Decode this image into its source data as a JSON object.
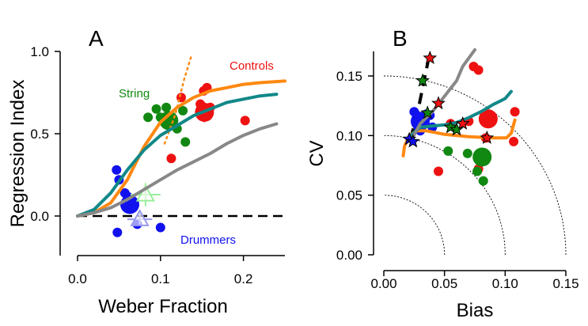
{
  "colors": {
    "controls": "#ee1111",
    "string": "#118811",
    "drummers": "#1111ee",
    "orange": "#ff8811",
    "teal": "#118888",
    "gray": "#888888",
    "light_green": "#99ee99",
    "light_blue": "#9999ee"
  },
  "chart_data": [
    {
      "type": "scatter",
      "panel_label": "A",
      "xlabel": "Weber Fraction",
      "ylabel": "Regression Index",
      "xlim": [
        0,
        0.25
      ],
      "ylim": [
        -0.2,
        1.0
      ],
      "xticks": [
        "0.0",
        "0.1",
        "0.2"
      ],
      "yticks": [
        "0.0",
        "0.5",
        "1.0"
      ],
      "annotations": [
        {
          "text": "Controls",
          "group": "controls",
          "x": 0.185,
          "y": 0.87
        },
        {
          "text": "String",
          "group": "string",
          "x": 0.061,
          "y": 0.72
        },
        {
          "text": "Drummers",
          "group": "drummers",
          "x": 0.148,
          "y": -0.14
        }
      ],
      "series": [
        {
          "group": "controls",
          "kind": "points",
          "points": [
            [
              0.113,
              0.35
            ],
            [
              0.125,
              0.72
            ],
            [
              0.148,
              0.68
            ],
            [
              0.152,
              0.76
            ],
            [
              0.156,
              0.78
            ],
            [
              0.158,
              0.62
            ],
            [
              0.16,
              0.66
            ],
            [
              0.202,
              0.58
            ]
          ]
        },
        {
          "group": "controls",
          "kind": "mean",
          "x": 0.153,
          "y": 0.63,
          "xerr": 0.005,
          "yerr": 0.06
        },
        {
          "group": "string",
          "kind": "points",
          "points": [
            [
              0.085,
              0.6
            ],
            [
              0.095,
              0.65
            ],
            [
              0.1,
              0.6
            ],
            [
              0.107,
              0.66
            ],
            [
              0.113,
              0.6
            ],
            [
              0.12,
              0.53
            ],
            [
              0.127,
              0.64
            ],
            [
              0.13,
              0.45
            ]
          ]
        },
        {
          "group": "string",
          "kind": "mean",
          "x": 0.11,
          "y": 0.58
        },
        {
          "group": "drummers",
          "kind": "points",
          "points": [
            [
              0.047,
              0.28
            ],
            [
              0.05,
              0.22
            ],
            [
              0.048,
              -0.1
            ],
            [
              0.057,
              0.14
            ],
            [
              0.06,
              0.12
            ],
            [
              0.063,
              0.11
            ],
            [
              0.072,
              -0.05
            ],
            [
              0.1,
              -0.07
            ]
          ]
        },
        {
          "group": "drummers",
          "kind": "mean",
          "x": 0.063,
          "y": 0.07
        },
        {
          "group": "light_green",
          "kind": "triangle",
          "x": 0.082,
          "y": 0.13,
          "xerr": 0.018,
          "yerr": 0.07
        },
        {
          "group": "light_blue",
          "kind": "triangle",
          "x": 0.075,
          "y": -0.02,
          "xerr": 0.015,
          "yerr": 0.04
        },
        {
          "group": "orange",
          "kind": "dotted",
          "points": [
            [
              0.105,
              0.44
            ],
            [
              0.118,
              0.62
            ],
            [
              0.128,
              0.82
            ],
            [
              0.137,
              0.97
            ]
          ]
        },
        {
          "group": "orange",
          "kind": "curve",
          "points": [
            [
              0.0,
              0.0
            ],
            [
              0.02,
              0.02
            ],
            [
              0.04,
              0.08
            ],
            [
              0.06,
              0.22
            ],
            [
              0.08,
              0.42
            ],
            [
              0.1,
              0.57
            ],
            [
              0.12,
              0.66
            ],
            [
              0.14,
              0.72
            ],
            [
              0.16,
              0.76
            ],
            [
              0.18,
              0.78
            ],
            [
              0.2,
              0.8
            ],
            [
              0.22,
              0.81
            ],
            [
              0.25,
              0.82
            ]
          ]
        },
        {
          "group": "teal",
          "kind": "curve",
          "points": [
            [
              0.0,
              0.0
            ],
            [
              0.02,
              0.04
            ],
            [
              0.04,
              0.14
            ],
            [
              0.06,
              0.28
            ],
            [
              0.08,
              0.4
            ],
            [
              0.1,
              0.49
            ],
            [
              0.12,
              0.55
            ],
            [
              0.14,
              0.61
            ],
            [
              0.16,
              0.65
            ],
            [
              0.18,
              0.69
            ],
            [
              0.2,
              0.71
            ],
            [
              0.22,
              0.73
            ],
            [
              0.24,
              0.74
            ]
          ]
        },
        {
          "group": "gray",
          "kind": "curve",
          "points": [
            [
              0.0,
              0.0
            ],
            [
              0.02,
              0.02
            ],
            [
              0.04,
              0.05
            ],
            [
              0.06,
              0.1
            ],
            [
              0.08,
              0.16
            ],
            [
              0.1,
              0.22
            ],
            [
              0.12,
              0.28
            ],
            [
              0.14,
              0.33
            ],
            [
              0.16,
              0.38
            ],
            [
              0.18,
              0.44
            ],
            [
              0.2,
              0.49
            ],
            [
              0.22,
              0.53
            ],
            [
              0.24,
              0.56
            ]
          ]
        },
        {
          "group": "black",
          "kind": "dashed",
          "points": [
            [
              0.0,
              0.0
            ],
            [
              0.25,
              0.0
            ]
          ]
        }
      ]
    },
    {
      "type": "scatter",
      "panel_label": "B",
      "xlabel": "Bias",
      "ylabel": "CV",
      "xlim": [
        0,
        0.17
      ],
      "ylim": [
        0,
        0.17
      ],
      "xticks": [
        "0.00",
        "0.05",
        "0.10",
        "0.15"
      ],
      "yticks": [
        "0.00",
        "0.05",
        "0.10",
        "0.15"
      ],
      "arcs": [
        0.05,
        0.1,
        0.15
      ],
      "series": [
        {
          "group": "controls",
          "kind": "points",
          "points": [
            [
              0.045,
              0.07
            ],
            [
              0.055,
              0.11
            ],
            [
              0.07,
              0.112
            ],
            [
              0.074,
              0.158
            ],
            [
              0.078,
              0.155
            ],
            [
              0.078,
              0.072
            ],
            [
              0.084,
              0.098
            ],
            [
              0.107,
              0.095
            ],
            [
              0.108,
              0.12
            ]
          ]
        },
        {
          "group": "controls",
          "kind": "mean",
          "x": 0.086,
          "y": 0.114
        },
        {
          "group": "string",
          "kind": "points",
          "points": [
            [
              0.053,
              0.087
            ],
            [
              0.069,
              0.085
            ],
            [
              0.077,
              0.07
            ],
            [
              0.082,
              0.062
            ]
          ]
        },
        {
          "group": "string",
          "kind": "mean",
          "x": 0.081,
          "y": 0.082
        },
        {
          "group": "drummers",
          "kind": "points",
          "points": [
            [
              0.025,
              0.12
            ],
            [
              0.028,
              0.108
            ],
            [
              0.03,
              0.104
            ],
            [
              0.035,
              0.118
            ],
            [
              0.038,
              0.117
            ],
            [
              0.04,
              0.107
            ]
          ]
        },
        {
          "group": "drummers",
          "kind": "mean",
          "x": 0.03,
          "y": 0.112
        },
        {
          "group": "orange",
          "kind": "curve",
          "points": [
            [
              0.016,
              0.083
            ],
            [
              0.017,
              0.091
            ],
            [
              0.021,
              0.1
            ],
            [
              0.027,
              0.104
            ],
            [
              0.035,
              0.104
            ],
            [
              0.05,
              0.101
            ],
            [
              0.07,
              0.099
            ],
            [
              0.09,
              0.098
            ],
            [
              0.101,
              0.098
            ],
            [
              0.105,
              0.102
            ],
            [
              0.108,
              0.113
            ]
          ]
        },
        {
          "group": "teal",
          "kind": "curve",
          "points": [
            [
              0.02,
              0.098
            ],
            [
              0.03,
              0.107
            ],
            [
              0.04,
              0.108
            ],
            [
              0.05,
              0.109
            ],
            [
              0.06,
              0.111
            ],
            [
              0.07,
              0.115
            ],
            [
              0.08,
              0.12
            ],
            [
              0.09,
              0.126
            ],
            [
              0.1,
              0.131
            ],
            [
              0.105,
              0.137
            ]
          ]
        },
        {
          "group": "gray",
          "kind": "curve",
          "points": [
            [
              0.022,
              0.095
            ],
            [
              0.03,
              0.11
            ],
            [
              0.04,
              0.12
            ],
            [
              0.05,
              0.133
            ],
            [
              0.06,
              0.146
            ],
            [
              0.065,
              0.158
            ],
            [
              0.075,
              0.172
            ]
          ]
        },
        {
          "group": "black",
          "kind": "dashed",
          "points": [
            [
              0.022,
              0.097
            ],
            [
              0.028,
              0.12
            ],
            [
              0.034,
              0.15
            ],
            [
              0.038,
              0.17
            ]
          ]
        },
        {
          "group": "stars",
          "kind": "stars",
          "points": [
            {
              "x": 0.021,
              "y": 0.097,
              "fill": "#1111ee"
            },
            {
              "x": 0.024,
              "y": 0.095,
              "fill": "#1111ee"
            },
            {
              "x": 0.032,
              "y": 0.146,
              "fill": "#118811"
            },
            {
              "x": 0.036,
              "y": 0.119,
              "fill": "#118811"
            },
            {
              "x": 0.038,
              "y": 0.165,
              "fill": "#ee1111"
            },
            {
              "x": 0.045,
              "y": 0.127,
              "fill": "#ee1111"
            },
            {
              "x": 0.055,
              "y": 0.107,
              "fill": "#118811"
            },
            {
              "x": 0.06,
              "y": 0.105,
              "fill": "#118811"
            },
            {
              "x": 0.065,
              "y": 0.11,
              "fill": "#ee1111"
            },
            {
              "x": 0.085,
              "y": 0.098,
              "fill": "#ee1111"
            }
          ]
        }
      ]
    }
  ]
}
